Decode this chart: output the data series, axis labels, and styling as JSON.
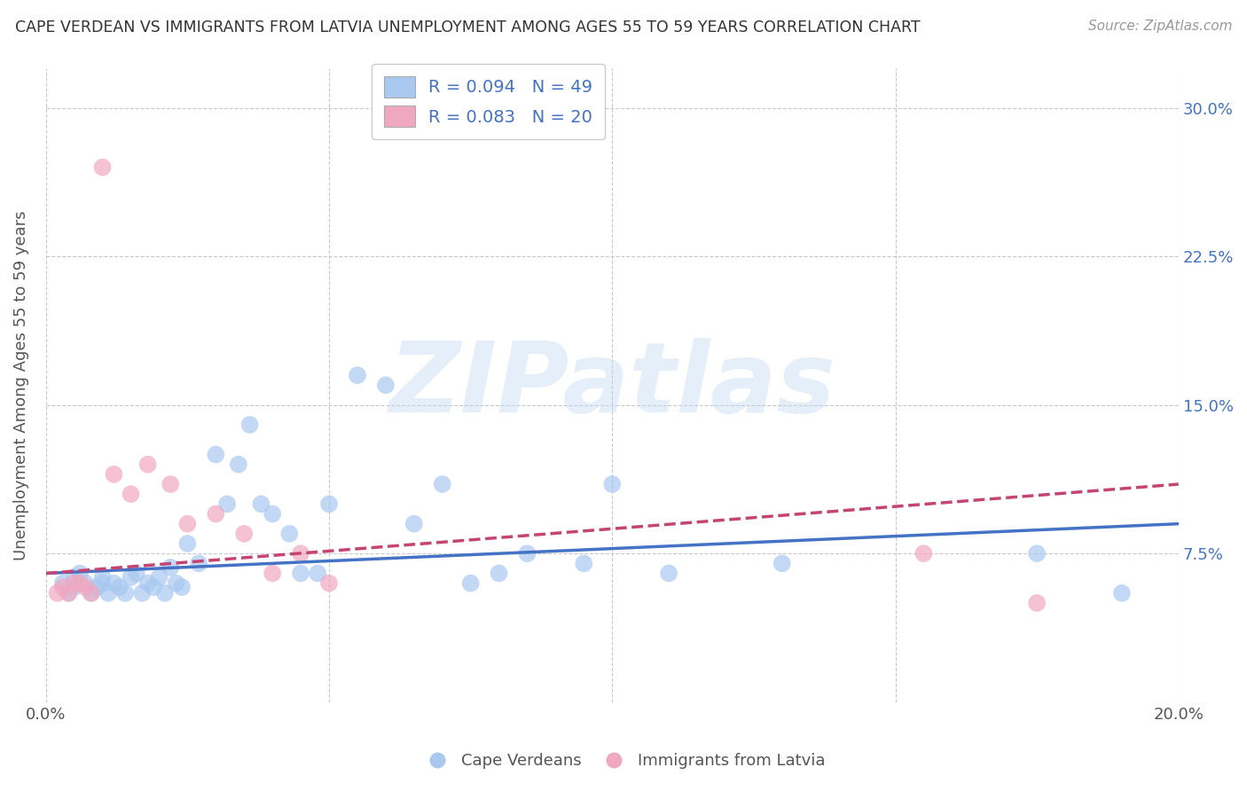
{
  "title": "CAPE VERDEAN VS IMMIGRANTS FROM LATVIA UNEMPLOYMENT AMONG AGES 55 TO 59 YEARS CORRELATION CHART",
  "source": "Source: ZipAtlas.com",
  "ylabel": "Unemployment Among Ages 55 to 59 years",
  "xlim": [
    0.0,
    0.2
  ],
  "ylim": [
    0.0,
    0.32
  ],
  "xticks": [
    0.0,
    0.05,
    0.1,
    0.15,
    0.2
  ],
  "xtick_labels": [
    "0.0%",
    "",
    "",
    "",
    "20.0%"
  ],
  "yticks": [
    0.0,
    0.075,
    0.15,
    0.225,
    0.3
  ],
  "ytick_labels": [
    "",
    "7.5%",
    "15.0%",
    "22.5%",
    "30.0%"
  ],
  "blue_R": 0.094,
  "blue_N": 49,
  "pink_R": 0.083,
  "pink_N": 20,
  "blue_color": "#a8c8f0",
  "pink_color": "#f0a8c0",
  "blue_line_color": "#4472c4",
  "pink_line_color": "#c44472",
  "background_color": "#ffffff",
  "grid_color": "#c8c8c8",
  "watermark": "ZIPatlas",
  "blue_scatter_x": [
    0.003,
    0.004,
    0.005,
    0.005,
    0.006,
    0.007,
    0.008,
    0.009,
    0.01,
    0.01,
    0.011,
    0.012,
    0.013,
    0.014,
    0.015,
    0.016,
    0.017,
    0.018,
    0.019,
    0.02,
    0.021,
    0.022,
    0.023,
    0.024,
    0.025,
    0.027,
    0.03,
    0.032,
    0.034,
    0.036,
    0.038,
    0.04,
    0.043,
    0.045,
    0.048,
    0.05,
    0.055,
    0.06,
    0.065,
    0.07,
    0.075,
    0.08,
    0.085,
    0.095,
    0.1,
    0.11,
    0.13,
    0.175,
    0.19
  ],
  "blue_scatter_y": [
    0.06,
    0.055,
    0.058,
    0.063,
    0.065,
    0.06,
    0.055,
    0.058,
    0.06,
    0.063,
    0.055,
    0.06,
    0.058,
    0.055,
    0.063,
    0.065,
    0.055,
    0.06,
    0.058,
    0.063,
    0.055,
    0.068,
    0.06,
    0.058,
    0.08,
    0.07,
    0.125,
    0.1,
    0.12,
    0.14,
    0.1,
    0.095,
    0.085,
    0.065,
    0.065,
    0.1,
    0.165,
    0.16,
    0.09,
    0.11,
    0.06,
    0.065,
    0.075,
    0.07,
    0.11,
    0.065,
    0.07,
    0.075,
    0.055
  ],
  "pink_scatter_x": [
    0.002,
    0.003,
    0.004,
    0.005,
    0.006,
    0.007,
    0.008,
    0.01,
    0.012,
    0.015,
    0.018,
    0.022,
    0.025,
    0.03,
    0.035,
    0.04,
    0.045,
    0.05,
    0.155,
    0.175
  ],
  "pink_scatter_y": [
    0.055,
    0.058,
    0.055,
    0.06,
    0.06,
    0.058,
    0.055,
    0.27,
    0.115,
    0.105,
    0.12,
    0.11,
    0.09,
    0.095,
    0.085,
    0.065,
    0.075,
    0.06,
    0.075,
    0.05
  ],
  "blue_line_x0": 0.0,
  "blue_line_y0": 0.065,
  "blue_line_x1": 0.2,
  "blue_line_y1": 0.09,
  "pink_line_x0": 0.0,
  "pink_line_y0": 0.065,
  "pink_line_x1": 0.2,
  "pink_line_y1": 0.11
}
